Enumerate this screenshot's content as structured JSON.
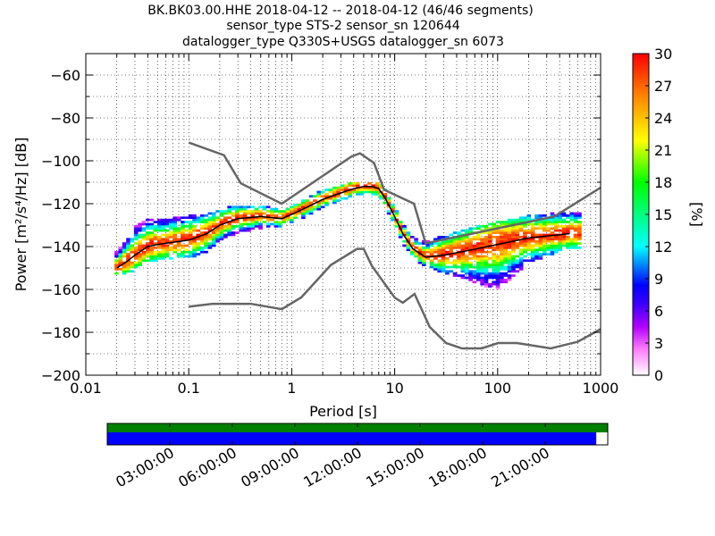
{
  "title_lines": [
    "BK.BK03.00.HHE   2018-04-12 -- 2018-04-12  (46/46 segments)",
    "sensor_type STS-2 sensor_sn 120644",
    "datalogger_type Q330S+USGS datalogger_sn 6073"
  ],
  "chart_data": [
    {
      "type": "heatmap",
      "title": "BK.BK03.00.HHE   2018-04-12 -- 2018-04-12  (46/46 segments)",
      "xlabel": "Period [s]",
      "ylabel": "Power [m²/s⁴/Hz] [dB]",
      "xscale": "log",
      "xlim": [
        0.01,
        1000
      ],
      "ylim": [
        -200,
        -50
      ],
      "x_ticks": [
        0.01,
        0.1,
        1,
        10,
        100,
        1000
      ],
      "x_tick_labels": [
        "0.01",
        "0.1",
        "1",
        "10",
        "100",
        "1000"
      ],
      "y_ticks": [
        -200,
        -180,
        -160,
        -140,
        -120,
        -100,
        -80,
        -60
      ],
      "y_tick_labels": [
        "−200",
        "−180",
        "−160",
        "−140",
        "−120",
        "−100",
        "−80",
        "−60"
      ],
      "grid": true,
      "colorbar": {
        "label": "[%]",
        "range": [
          0,
          30
        ],
        "ticks": [
          0,
          3,
          6,
          9,
          12,
          15,
          18,
          21,
          24,
          27,
          30
        ],
        "colors": [
          "#ffffff",
          "#b400ff",
          "#0000ff",
          "#00ffff",
          "#00ff00",
          "#ffff00",
          "#ff8c00",
          "#ff0000"
        ]
      },
      "mean_curve": {
        "periods": [
          0.02,
          0.025,
          0.03,
          0.04,
          0.05,
          0.07,
          0.1,
          0.15,
          0.2,
          0.3,
          0.5,
          0.8,
          1,
          1.5,
          2,
          3,
          4,
          5,
          6,
          7,
          8,
          10,
          12,
          15,
          20,
          30,
          50,
          100,
          200,
          500
        ],
        "power_db": [
          -150,
          -147,
          -144,
          -140,
          -139,
          -138,
          -137,
          -134,
          -130,
          -127,
          -126,
          -127,
          -125,
          -121,
          -118,
          -115,
          -113,
          -112,
          -112,
          -113,
          -117,
          -126,
          -134,
          -141,
          -145,
          -144,
          -142,
          -139,
          -136,
          -134
        ]
      },
      "high_noise_model": {
        "periods": [
          0.1,
          0.22,
          0.32,
          0.8,
          3.8,
          4.6,
          6.3,
          7.9,
          15.4,
          20,
          354.8,
          1000
        ],
        "power_db": [
          -91.5,
          -97.4,
          -110.5,
          -120,
          -98,
          -96.5,
          -101,
          -113.5,
          -120,
          -138.5,
          -126,
          -112.5
        ]
      },
      "low_noise_model": {
        "periods": [
          0.1,
          0.17,
          0.4,
          0.8,
          1.24,
          2.4,
          4.3,
          5,
          6,
          10,
          12,
          15.6,
          21.9,
          31.6,
          45,
          70,
          101,
          154,
          328,
          600,
          1000
        ],
        "power_db": [
          -168,
          -166.7,
          -166.7,
          -169.2,
          -163.7,
          -148.6,
          -141.1,
          -141.1,
          -149,
          -163.8,
          -166.2,
          -162.1,
          -177.5,
          -185,
          -187.5,
          -187.5,
          -185,
          -185,
          -187.5,
          -184.4,
          -178.5
        ]
      },
      "psd_density_bands": [
        {
          "periods": [
            0.02,
            0.025,
            0.03,
            0.04,
            0.05,
            0.07,
            0.1,
            0.15,
            0.2,
            0.3,
            0.5,
            0.8,
            1,
            1.5,
            2,
            3,
            4,
            5,
            6,
            7,
            8,
            10,
            12,
            15,
            20,
            30,
            50,
            100,
            200,
            500
          ],
          "upper_db": [
            -143,
            -138,
            -132,
            -128,
            -128,
            -128,
            -127,
            -126,
            -124,
            -122,
            -122,
            -124,
            -122,
            -118,
            -115,
            -113,
            -111,
            -111,
            -111,
            -111,
            -114,
            -123,
            -131,
            -137,
            -139,
            -136,
            -133,
            -130,
            -127,
            -125
          ],
          "lower_db": [
            -153,
            -153,
            -150,
            -147,
            -146,
            -145,
            -145,
            -142,
            -137,
            -133,
            -131,
            -130,
            -128,
            -125,
            -121,
            -118,
            -116,
            -115,
            -115,
            -116,
            -120,
            -130,
            -138,
            -145,
            -149,
            -152,
            -155,
            -160,
            -147,
            -141
          ]
        }
      ]
    },
    {
      "type": "bar",
      "title": "",
      "x_tick_labels": [
        "03:00:00",
        "06:00:00",
        "09:00:00",
        "12:00:00",
        "15:00:00",
        "18:00:00",
        "21:00:00"
      ],
      "data_coverage_fraction": 1.0,
      "psd_coverage_fraction": 0.977
    }
  ],
  "colors": {
    "noise_model": "#666666",
    "mean": "#000000",
    "coverage_data": "#008000",
    "coverage_psd": "#0000ff"
  }
}
